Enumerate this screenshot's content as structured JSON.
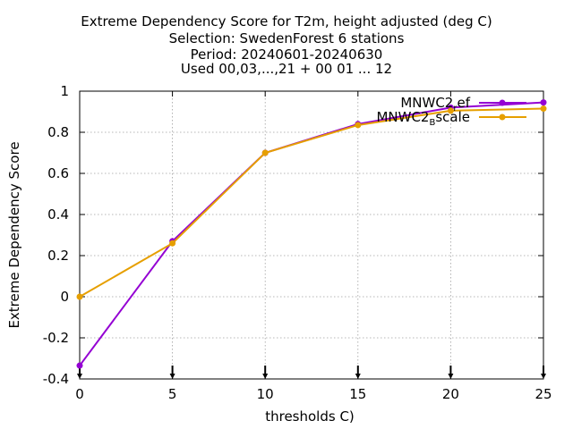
{
  "chart_data": {
    "type": "line",
    "title_lines": [
      "Extreme Dependency Score  for T2m, height adjusted (deg C)",
      "Selection: SwedenForest      6 stations",
      "Period: 20240601-20240630",
      "Used 00,03,...,21 + 00 01 ... 12"
    ],
    "xlabel": "thresholds C)",
    "ylabel": "Extreme Dependency Score",
    "xlim": [
      0,
      25
    ],
    "ylim": [
      -0.4,
      1
    ],
    "x_ticks": [
      0,
      5,
      10,
      15,
      20,
      25
    ],
    "x_tick_labels": [
      "0",
      "5",
      "10",
      "15",
      "20",
      "25"
    ],
    "y_ticks": [
      -0.4,
      -0.2,
      0,
      0.2,
      0.4,
      0.6,
      0.8,
      1
    ],
    "y_tick_labels": [
      "-0.4",
      "-0.2",
      "0",
      "0.2",
      "0.4",
      "0.6",
      "0.8",
      "1"
    ],
    "grid": true,
    "legend_position": "top-right",
    "x": [
      0,
      5,
      10,
      15,
      20,
      25
    ],
    "series": [
      {
        "name": "MNWC2_ref",
        "legend_parts": [
          "MNWC2",
          "r",
          "ef"
        ],
        "color": "#9400d3",
        "values": [
          -0.335,
          0.27,
          0.7,
          0.84,
          0.92,
          0.945
        ]
      },
      {
        "name": "MNWC2_Bscale",
        "legend_parts": [
          "MNWC2",
          "B",
          "scale"
        ],
        "color": "#e69f00",
        "values": [
          0.0,
          0.26,
          0.7,
          0.835,
          0.905,
          0.915
        ]
      }
    ]
  }
}
